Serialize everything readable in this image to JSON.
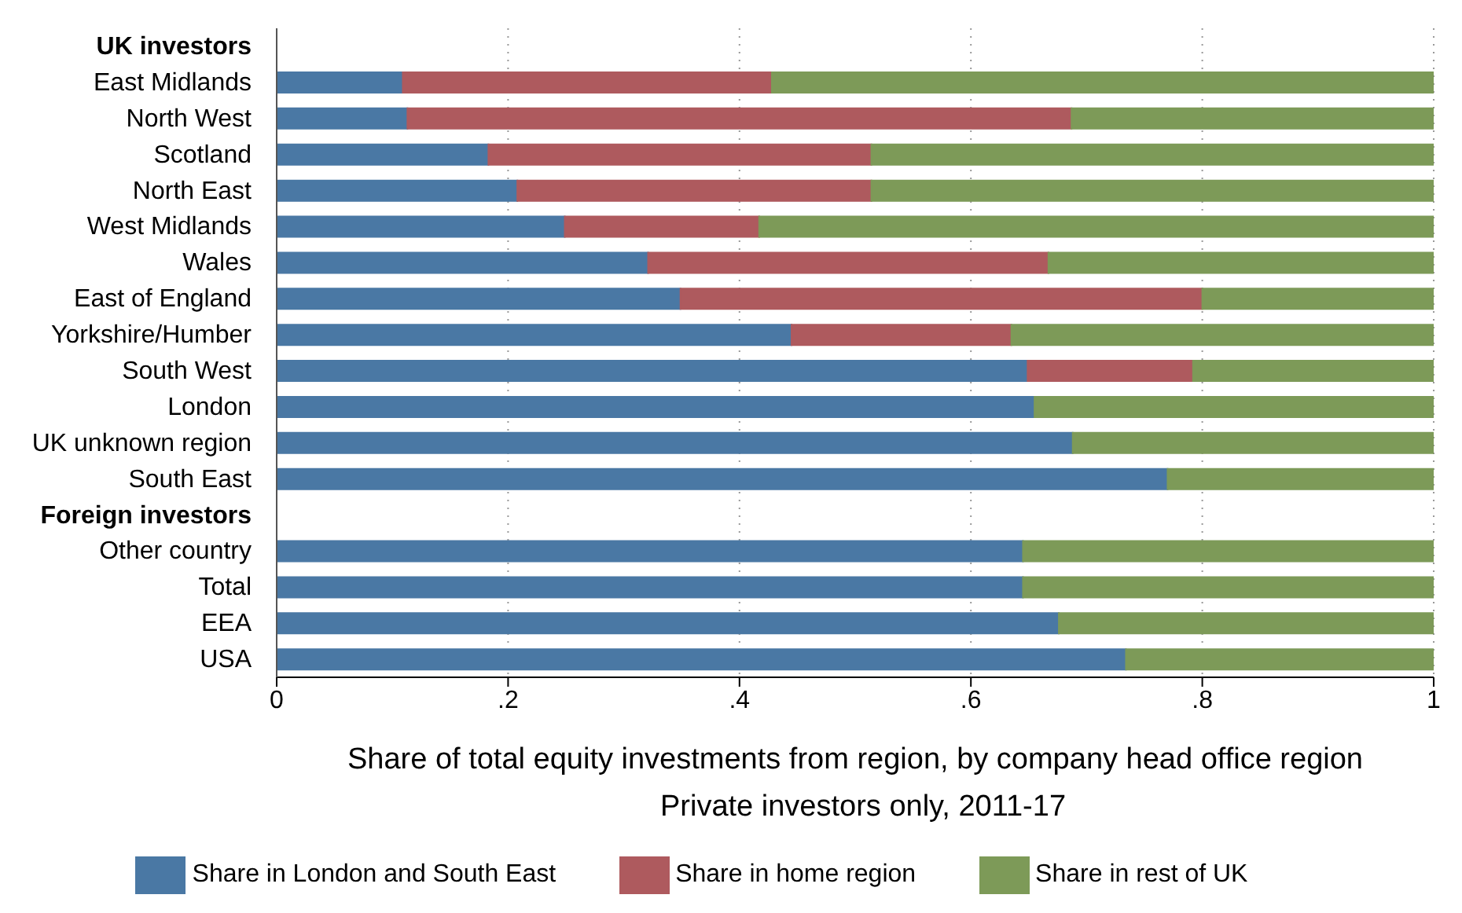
{
  "chart_data": {
    "type": "bar",
    "orientation": "horizontal",
    "stacked": true,
    "xlabel": "Share of total equity investments from region, by company head office region",
    "annotations": [
      "Private investors only, 2011-17"
    ],
    "categories": [
      "UK investors",
      "East Midlands",
      "North West",
      "Scotland",
      "North East",
      "West Midlands",
      "Wales",
      "East of England",
      "Yorkshire/Humber",
      "South West",
      "London",
      "UK unknown region",
      "South East",
      "Foreign investors",
      "Other country",
      "Total",
      "EEA",
      "USA"
    ],
    "series": [
      {
        "name": "Share in London and South East",
        "color": "#4a78a4",
        "values": [
          null,
          0.109,
          0.113,
          0.183,
          0.208,
          0.249,
          0.321,
          0.349,
          0.445,
          0.649,
          0.655,
          0.688,
          0.77,
          null,
          0.645,
          0.645,
          0.676,
          0.734
        ]
      },
      {
        "name": "Share in home region",
        "color": "#ae5a5e",
        "values": [
          null,
          0.319,
          0.574,
          0.331,
          0.306,
          0.168,
          0.346,
          0.451,
          0.19,
          0.143,
          null,
          null,
          null,
          null,
          null,
          null,
          null,
          null
        ]
      },
      {
        "name": "Share in rest of UK",
        "color": "#7d9a58",
        "values": [
          null,
          0.572,
          0.313,
          0.486,
          0.486,
          0.583,
          0.333,
          0.2,
          0.365,
          0.208,
          0.345,
          0.312,
          0.23,
          null,
          0.355,
          0.355,
          0.324,
          0.266
        ]
      }
    ],
    "xlim": [
      0,
      1
    ],
    "xticks": [
      0,
      {
        "value": 0.2,
        "label": ".2"
      },
      {
        "value": 0.4,
        "label": ".4"
      },
      {
        "value": 0.6,
        "label": ".6"
      },
      {
        "value": 0.8,
        "label": ".8"
      },
      1
    ],
    "grid": "x",
    "legend": "bottom"
  }
}
